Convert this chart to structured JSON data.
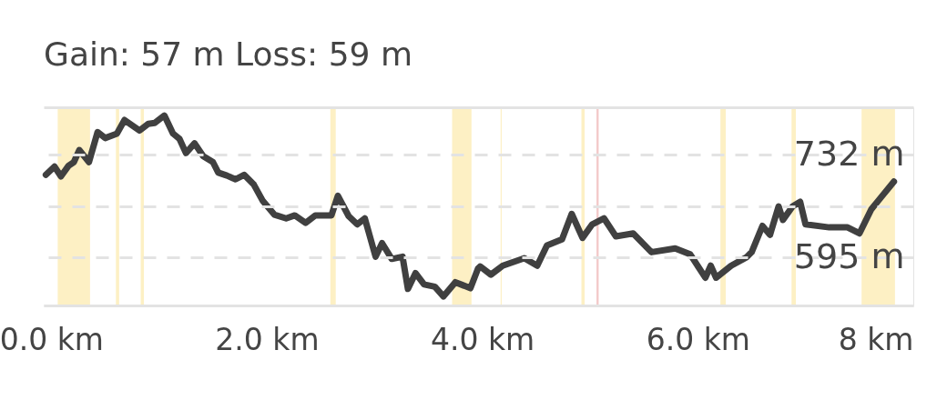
{
  "chart_data": {
    "type": "line",
    "title": "Gain:  57 m    Loss:  59 m",
    "x": [
      -0.05,
      0.03,
      0.09,
      0.16,
      0.21,
      0.26,
      0.35,
      0.43,
      0.5,
      0.61,
      0.68,
      0.75,
      0.82,
      0.9,
      0.96,
      1.05,
      1.13,
      1.19,
      1.25,
      1.33,
      1.41,
      1.5,
      1.55,
      1.63,
      1.71,
      1.79,
      1.88,
      1.96,
      2.07,
      2.18,
      2.26,
      2.36,
      2.45,
      2.6,
      2.66,
      2.76,
      2.84,
      2.91,
      3.01,
      3.07,
      3.16,
      3.26,
      3.31,
      3.38,
      3.46,
      3.56,
      3.64,
      3.75,
      3.89,
      3.96,
      3.98,
      4.08,
      4.19,
      4.39,
      4.51,
      4.6,
      4.74,
      4.83,
      4.93,
      5.02,
      5.13,
      5.24,
      5.4,
      5.57,
      5.79,
      5.93,
      6.07,
      6.12,
      6.17,
      6.31,
      6.45,
      6.5,
      6.6,
      6.67,
      6.75,
      6.79,
      6.88,
      6.95,
      7.0,
      7.22,
      7.39,
      7.5,
      7.61,
      7.7,
      7.82
    ],
    "series": [
      {
        "color": "#404040",
        "values": [
          705,
          716,
          703,
          717,
          722,
          738,
          722,
          762,
          754,
          760,
          778,
          771,
          764,
          773,
          774,
          784,
          760,
          753,
          734,
          747,
          730,
          722,
          708,
          704,
          699,
          705,
          692,
          671,
          652,
          647,
          651,
          641,
          651,
          651,
          677,
          650,
          639,
          647,
          596,
          614,
          593,
          596,
          553,
          574,
          559,
          556,
          543,
          562,
          554,
          580,
          583,
          572,
          584,
          594,
          584,
          611,
          619,
          653,
          621,
          639,
          647,
          623,
          627,
          602,
          607,
          599,
          568,
          584,
          568,
          584,
          595,
          602,
          637,
          625,
          663,
          645,
          663,
          669,
          639,
          635,
          635,
          627,
          659,
          675,
          696
        ]
      }
    ],
    "xlim": [
      -0.07,
      8
    ],
    "ylim": [
      531,
      795
    ],
    "xticks": [
      {
        "value": 0,
        "label": "0.0 km"
      },
      {
        "value": 2,
        "label": "2.0 km"
      },
      {
        "value": 4,
        "label": "4.0 km"
      },
      {
        "value": 6,
        "label": "6.0 km"
      },
      {
        "value": 8,
        "label": "8 km"
      }
    ],
    "yticks": [
      {
        "value": 595,
        "label": "595 m"
      },
      {
        "value": 663.5,
        "label": null
      },
      {
        "value": 732,
        "label": "732 m"
      }
    ],
    "grid": "y",
    "line_style": "solid",
    "marker": "none",
    "bands": [
      {
        "axis": "x",
        "from": 0.06,
        "to": 0.36,
        "color": "#fdf0c4"
      },
      {
        "axis": "x",
        "from": 0.6,
        "to": 0.63,
        "color": "#fdf0c4"
      },
      {
        "axis": "x",
        "from": 0.83,
        "to": 0.86,
        "color": "#fdf0c4"
      },
      {
        "axis": "x",
        "from": 2.59,
        "to": 2.64,
        "color": "#fdf0c4"
      },
      {
        "axis": "x",
        "from": 3.72,
        "to": 3.9,
        "color": "#fdf0c4"
      },
      {
        "axis": "x",
        "from": 4.17,
        "to": 4.18,
        "color": "#fdf0c4"
      },
      {
        "axis": "x",
        "from": 4.92,
        "to": 4.95,
        "color": "#fdf0c4"
      },
      {
        "axis": "x",
        "from": 5.06,
        "to": 5.08,
        "color": "#f3c9c9"
      },
      {
        "axis": "x",
        "from": 6.21,
        "to": 6.26,
        "color": "#fdf0c4"
      },
      {
        "axis": "x",
        "from": 6.87,
        "to": 6.91,
        "color": "#fdf0c4"
      },
      {
        "axis": "x",
        "from": 7.52,
        "to": 7.83,
        "color": "#fdf0c4"
      }
    ]
  }
}
